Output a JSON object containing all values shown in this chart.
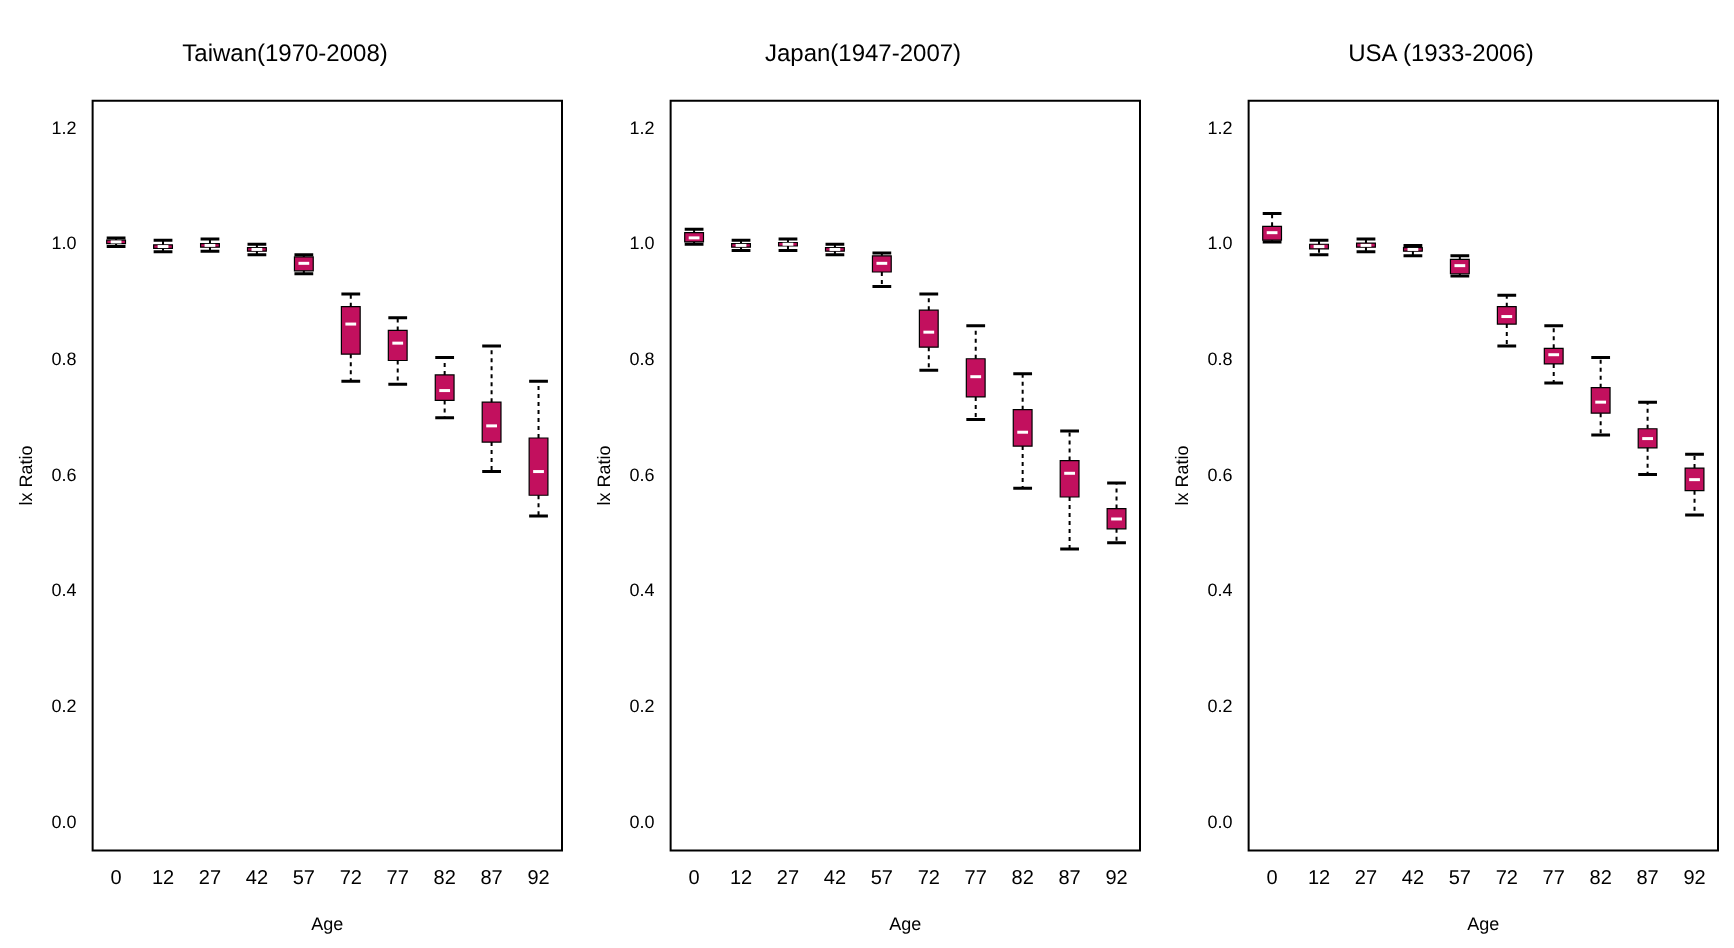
{
  "chart_data": [
    {
      "type": "box",
      "title": "Taiwan(1970-2008)",
      "xlabel": "Age",
      "ylabel": "lx Ratio",
      "categories": [
        "0",
        "12",
        "27",
        "42",
        "57",
        "72",
        "77",
        "82",
        "87",
        "92"
      ],
      "color": "#c2105e",
      "ylim": [
        -0.048,
        1.248
      ],
      "yticks": [
        {
          "value": 0,
          "label": "0.0"
        },
        {
          "value": 0.2,
          "label": "0.2"
        },
        {
          "value": 0.4,
          "label": "0.4"
        },
        {
          "value": 0.6,
          "label": "0.6"
        },
        {
          "value": 0.8,
          "label": "0.8"
        },
        {
          "value": 1,
          "label": "1.0"
        },
        {
          "value": 1.2,
          "label": "1.2"
        }
      ],
      "grid": false,
      "legend": false,
      "boxes": [
        {
          "low": 0.996,
          "q1": 1.001,
          "median": 1.004,
          "q3": 1.007,
          "high": 1.011
        },
        {
          "low": 0.987,
          "q1": 0.993,
          "median": 0.996,
          "q3": 0.999,
          "high": 1.007
        },
        {
          "low": 0.988,
          "q1": 0.995,
          "median": 0.998,
          "q3": 1.001,
          "high": 1.009
        },
        {
          "low": 0.982,
          "q1": 0.988,
          "median": 0.991,
          "q3": 0.994,
          "high": 1.0
        },
        {
          "low": 0.949,
          "q1": 0.954,
          "median": 0.967,
          "q3": 0.978,
          "high": 0.982
        },
        {
          "low": 0.763,
          "q1": 0.81,
          "median": 0.862,
          "q3": 0.892,
          "high": 0.914
        },
        {
          "low": 0.758,
          "q1": 0.799,
          "median": 0.829,
          "q3": 0.851,
          "high": 0.873
        },
        {
          "low": 0.7,
          "q1": 0.73,
          "median": 0.747,
          "q3": 0.774,
          "high": 0.804
        },
        {
          "low": 0.607,
          "q1": 0.658,
          "median": 0.686,
          "q3": 0.727,
          "high": 0.824
        },
        {
          "low": 0.53,
          "q1": 0.566,
          "median": 0.607,
          "q3": 0.665,
          "high": 0.763
        }
      ]
    },
    {
      "type": "box",
      "title": "Japan(1947-2007)",
      "xlabel": "Age",
      "ylabel": "lx Ratio",
      "categories": [
        "0",
        "12",
        "27",
        "42",
        "57",
        "72",
        "77",
        "82",
        "87",
        "92"
      ],
      "color": "#c2105e",
      "ylim": [
        -0.048,
        1.248
      ],
      "yticks": [
        {
          "value": 0,
          "label": "0.0"
        },
        {
          "value": 0.2,
          "label": "0.2"
        },
        {
          "value": 0.4,
          "label": "0.4"
        },
        {
          "value": 0.6,
          "label": "0.6"
        },
        {
          "value": 0.8,
          "label": "0.8"
        },
        {
          "value": 1,
          "label": "1.0"
        },
        {
          "value": 1.2,
          "label": "1.2"
        }
      ],
      "grid": false,
      "legend": false,
      "boxes": [
        {
          "low": 1.0,
          "q1": 1.004,
          "median": 1.011,
          "q3": 1.02,
          "high": 1.026
        },
        {
          "low": 0.989,
          "q1": 0.995,
          "median": 0.998,
          "q3": 1.001,
          "high": 1.007
        },
        {
          "low": 0.989,
          "q1": 0.997,
          "median": 1.0,
          "q3": 1.003,
          "high": 1.009
        },
        {
          "low": 0.982,
          "q1": 0.988,
          "median": 0.991,
          "q3": 0.994,
          "high": 1.0
        },
        {
          "low": 0.927,
          "q1": 0.952,
          "median": 0.967,
          "q3": 0.98,
          "high": 0.985
        },
        {
          "low": 0.782,
          "q1": 0.822,
          "median": 0.848,
          "q3": 0.886,
          "high": 0.914
        },
        {
          "low": 0.697,
          "q1": 0.736,
          "median": 0.771,
          "q3": 0.802,
          "high": 0.859
        },
        {
          "low": 0.578,
          "q1": 0.651,
          "median": 0.675,
          "q3": 0.714,
          "high": 0.776
        },
        {
          "low": 0.473,
          "q1": 0.563,
          "median": 0.604,
          "q3": 0.626,
          "high": 0.677
        },
        {
          "low": 0.484,
          "q1": 0.508,
          "median": 0.525,
          "q3": 0.543,
          "high": 0.587
        }
      ]
    },
    {
      "type": "box",
      "title": "USA (1933-2006)",
      "xlabel": "Age",
      "ylabel": "lx Ratio",
      "categories": [
        "0",
        "12",
        "27",
        "42",
        "57",
        "72",
        "77",
        "82",
        "87",
        "92"
      ],
      "color": "#c2105e",
      "ylim": [
        -0.048,
        1.248
      ],
      "yticks": [
        {
          "value": 0,
          "label": "0.0"
        },
        {
          "value": 0.2,
          "label": "0.2"
        },
        {
          "value": 0.4,
          "label": "0.4"
        },
        {
          "value": 0.6,
          "label": "0.6"
        },
        {
          "value": 0.8,
          "label": "0.8"
        },
        {
          "value": 1,
          "label": "1.0"
        },
        {
          "value": 1.2,
          "label": "1.2"
        }
      ],
      "grid": false,
      "legend": false,
      "boxes": [
        {
          "low": 1.004,
          "q1": 1.007,
          "median": 1.02,
          "q3": 1.031,
          "high": 1.053
        },
        {
          "low": 0.982,
          "q1": 0.992,
          "median": 0.996,
          "q3": 1.0,
          "high": 1.007
        },
        {
          "low": 0.987,
          "q1": 0.995,
          "median": 0.998,
          "q3": 1.002,
          "high": 1.009
        },
        {
          "low": 0.98,
          "q1": 0.988,
          "median": 0.991,
          "q3": 0.994,
          "high": 0.998
        },
        {
          "low": 0.945,
          "q1": 0.949,
          "median": 0.963,
          "q3": 0.974,
          "high": 0.98
        },
        {
          "low": 0.824,
          "q1": 0.862,
          "median": 0.875,
          "q3": 0.892,
          "high": 0.912
        },
        {
          "low": 0.76,
          "q1": 0.793,
          "median": 0.809,
          "q3": 0.82,
          "high": 0.859
        },
        {
          "low": 0.67,
          "q1": 0.708,
          "median": 0.727,
          "q3": 0.752,
          "high": 0.804
        },
        {
          "low": 0.602,
          "q1": 0.648,
          "median": 0.664,
          "q3": 0.681,
          "high": 0.727
        },
        {
          "low": 0.532,
          "q1": 0.574,
          "median": 0.593,
          "q3": 0.613,
          "high": 0.637
        }
      ]
    }
  ]
}
